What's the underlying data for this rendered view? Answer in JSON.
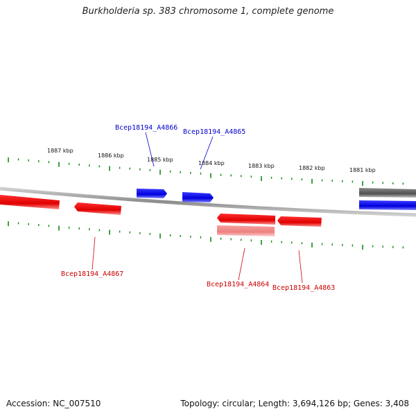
{
  "title": "Burkholderia sp. 383 chromosome 1, complete genome",
  "footer": {
    "accession": "Accession: NC_007510",
    "summary": "Topology: circular; Length: 3,694,126 bp; Genes: 3,408"
  },
  "colors": {
    "forward_gene": "#0000ee",
    "reverse_gene": "#ee0000",
    "reverse_gene_light": "#f08080",
    "other_feature": "#555555",
    "tick": "#118811",
    "backbone": "#888888"
  },
  "scale": {
    "labels": [
      "1887 kbp",
      "1886 kbp",
      "1885 kbp",
      "1884 kbp",
      "1883 kbp",
      "1882 kbp",
      "1881 kbp"
    ]
  },
  "genes": [
    {
      "id": "Bcep18194_A4866",
      "strand": "forward"
    },
    {
      "id": "Bcep18194_A4865",
      "strand": "forward"
    },
    {
      "id": "Bcep18194_A4867",
      "strand": "reverse"
    },
    {
      "id": "Bcep18194_A4864",
      "strand": "reverse"
    },
    {
      "id": "Bcep18194_A4863",
      "strand": "reverse"
    }
  ]
}
